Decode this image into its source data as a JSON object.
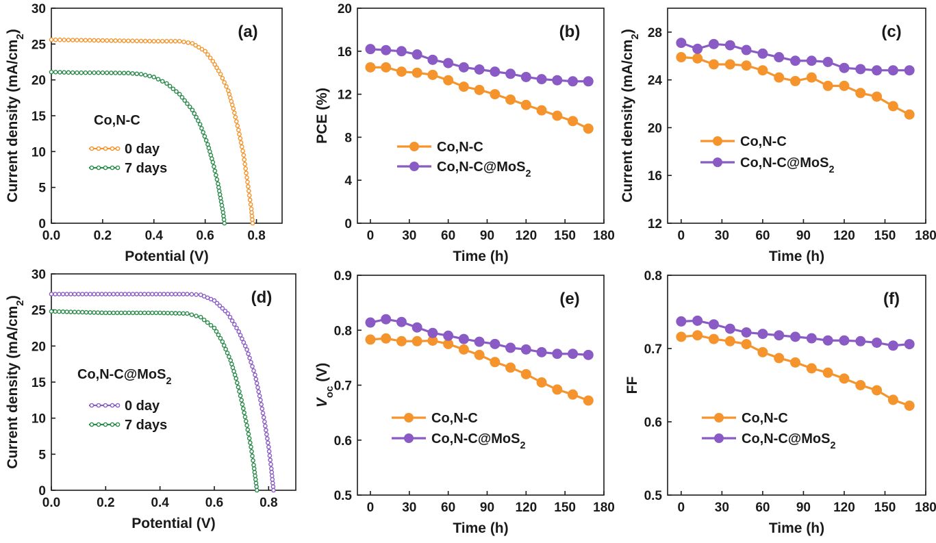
{
  "colors": {
    "orange": "#f5942c",
    "green": "#2a8a4a",
    "purple": "#8a5bc4",
    "axis": "#1a1a1a"
  },
  "chart_data": [
    {
      "id": "a",
      "type": "line",
      "panel_label": "(a)",
      "annotation": "Co,N-C",
      "xlabel": "Potential (V)",
      "ylabel": "Current density (mA/cm2)",
      "xlim": [
        0,
        0.9
      ],
      "ylim": [
        0,
        30
      ],
      "xticks": [
        "0.0",
        "0.2",
        "0.4",
        "0.6",
        "0.8"
      ],
      "yticks": [
        "0",
        "5",
        "10",
        "15",
        "20",
        "25",
        "30"
      ],
      "legend_position": "middle-left",
      "series": [
        {
          "name": "0 day",
          "color": "orange",
          "marker": "small-circle",
          "points": [
            [
              0,
              25.6
            ],
            [
              0.1,
              25.55
            ],
            [
              0.2,
              25.5
            ],
            [
              0.3,
              25.45
            ],
            [
              0.4,
              25.4
            ],
            [
              0.45,
              25.4
            ],
            [
              0.5,
              25.4
            ],
            [
              0.55,
              25.1
            ],
            [
              0.6,
              24.0
            ],
            [
              0.63,
              22.6
            ],
            [
              0.66,
              20.8
            ],
            [
              0.69,
              18.5
            ],
            [
              0.71,
              16.0
            ],
            [
              0.73,
              13.0
            ],
            [
              0.75,
              9.5
            ],
            [
              0.76,
              7.0
            ],
            [
              0.77,
              4.5
            ],
            [
              0.78,
              2.0
            ],
            [
              0.785,
              0
            ]
          ]
        },
        {
          "name": "7 days",
          "color": "green",
          "marker": "small-circle",
          "points": [
            [
              0,
              21.1
            ],
            [
              0.1,
              21.0
            ],
            [
              0.2,
              21.0
            ],
            [
              0.3,
              20.95
            ],
            [
              0.35,
              20.8
            ],
            [
              0.4,
              20.4
            ],
            [
              0.45,
              19.5
            ],
            [
              0.5,
              18.0
            ],
            [
              0.55,
              15.8
            ],
            [
              0.58,
              13.8
            ],
            [
              0.61,
              11.0
            ],
            [
              0.63,
              8.5
            ],
            [
              0.65,
              5.5
            ],
            [
              0.66,
              3.5
            ],
            [
              0.67,
              1.5
            ],
            [
              0.675,
              0
            ]
          ]
        }
      ]
    },
    {
      "id": "b",
      "type": "line",
      "panel_label": "(b)",
      "xlabel": "Time (h)",
      "ylabel": "PCE (%)",
      "xlim": [
        -10,
        180
      ],
      "ylim": [
        0,
        20
      ],
      "xticks": [
        "0",
        "30",
        "60",
        "90",
        "120",
        "150",
        "180"
      ],
      "yticks": [
        "0",
        "4",
        "8",
        "12",
        "16",
        "20"
      ],
      "legend_position": "middle-left",
      "x": [
        0,
        12,
        24,
        36,
        48,
        60,
        72,
        84,
        96,
        108,
        120,
        132,
        144,
        156,
        168
      ],
      "series": [
        {
          "name": "Co,N-C",
          "color": "orange",
          "values": [
            14.5,
            14.5,
            14.1,
            14.0,
            13.8,
            13.3,
            12.7,
            12.4,
            12.0,
            11.5,
            11.0,
            10.5,
            10.0,
            9.5,
            8.8
          ]
        },
        {
          "name": "Co,N-C@MoS2",
          "color": "purple",
          "values": [
            16.2,
            16.1,
            16.0,
            15.7,
            15.2,
            14.9,
            14.5,
            14.3,
            14.1,
            13.9,
            13.6,
            13.4,
            13.3,
            13.2,
            13.2
          ]
        }
      ]
    },
    {
      "id": "c",
      "type": "line",
      "panel_label": "(c)",
      "xlabel": "Time (h)",
      "ylabel": "Current density (mA/cm2)",
      "xlim": [
        -10,
        180
      ],
      "ylim": [
        12,
        30
      ],
      "xticks": [
        "0",
        "30",
        "60",
        "90",
        "120",
        "150",
        "180"
      ],
      "yticks": [
        "12",
        "16",
        "20",
        "24",
        "28"
      ],
      "legend_position": "middle-left",
      "x": [
        0,
        12,
        24,
        36,
        48,
        60,
        72,
        84,
        96,
        108,
        120,
        132,
        144,
        156,
        168
      ],
      "series": [
        {
          "name": "Co,N-C",
          "color": "orange",
          "values": [
            25.9,
            25.8,
            25.3,
            25.3,
            25.2,
            24.8,
            24.2,
            23.9,
            24.2,
            23.5,
            23.5,
            22.9,
            22.6,
            21.8,
            21.1
          ]
        },
        {
          "name": "Co,N-C@MoS2",
          "color": "purple",
          "values": [
            27.1,
            26.6,
            27.0,
            26.9,
            26.5,
            26.2,
            25.9,
            25.6,
            25.6,
            25.5,
            25.0,
            24.9,
            24.8,
            24.8,
            24.8
          ]
        }
      ]
    },
    {
      "id": "d",
      "type": "line",
      "panel_label": "(d)",
      "annotation": "Co,N-C@MoS2",
      "xlabel": "Potential (V)",
      "ylabel": "Current density (mA/cm2)",
      "xlim": [
        0,
        0.9
      ],
      "ylim": [
        0,
        30
      ],
      "xticks": [
        "0.0",
        "0.2",
        "0.4",
        "0.6",
        "0.8"
      ],
      "yticks": [
        "0",
        "5",
        "10",
        "15",
        "20",
        "25",
        "30"
      ],
      "legend_position": "middle-left",
      "series": [
        {
          "name": "0 day",
          "color": "purple",
          "marker": "small-circle",
          "points": [
            [
              0,
              27.2
            ],
            [
              0.1,
              27.2
            ],
            [
              0.2,
              27.2
            ],
            [
              0.3,
              27.2
            ],
            [
              0.4,
              27.2
            ],
            [
              0.5,
              27.2
            ],
            [
              0.55,
              27.1
            ],
            [
              0.6,
              26.3
            ],
            [
              0.65,
              24.5
            ],
            [
              0.69,
              22.0
            ],
            [
              0.72,
              19.5
            ],
            [
              0.75,
              16.0
            ],
            [
              0.77,
              12.5
            ],
            [
              0.785,
              9.5
            ],
            [
              0.8,
              6.0
            ],
            [
              0.81,
              3.0
            ],
            [
              0.815,
              1.0
            ],
            [
              0.818,
              0
            ]
          ]
        },
        {
          "name": "7 days",
          "color": "green",
          "marker": "small-circle",
          "points": [
            [
              0,
              24.8
            ],
            [
              0.1,
              24.7
            ],
            [
              0.2,
              24.6
            ],
            [
              0.3,
              24.6
            ],
            [
              0.4,
              24.6
            ],
            [
              0.5,
              24.5
            ],
            [
              0.55,
              24.0
            ],
            [
              0.6,
              22.5
            ],
            [
              0.63,
              20.6
            ],
            [
              0.66,
              18.0
            ],
            [
              0.68,
              15.5
            ],
            [
              0.7,
              12.5
            ],
            [
              0.72,
              9.0
            ],
            [
              0.735,
              6.0
            ],
            [
              0.745,
              3.5
            ],
            [
              0.752,
              1.5
            ],
            [
              0.757,
              0
            ]
          ]
        }
      ]
    },
    {
      "id": "e",
      "type": "line",
      "panel_label": "(e)",
      "xlabel": "Time (h)",
      "ylabel": "Voc (V)",
      "xlim": [
        -10,
        180
      ],
      "ylim": [
        0.5,
        0.9
      ],
      "xticks": [
        "0",
        "30",
        "60",
        "90",
        "120",
        "150",
        "180"
      ],
      "yticks": [
        "0.5",
        "0.6",
        "0.7",
        "0.8",
        "0.9"
      ],
      "legend_position": "lower-left",
      "x": [
        0,
        12,
        24,
        36,
        48,
        60,
        72,
        84,
        96,
        108,
        120,
        132,
        144,
        156,
        168
      ],
      "series": [
        {
          "name": "Co,N-C",
          "color": "orange",
          "values": [
            0.783,
            0.785,
            0.78,
            0.78,
            0.781,
            0.775,
            0.765,
            0.755,
            0.742,
            0.732,
            0.72,
            0.705,
            0.692,
            0.683,
            0.672
          ]
        },
        {
          "name": "Co,N-C@MoS2",
          "color": "purple",
          "values": [
            0.814,
            0.82,
            0.815,
            0.805,
            0.795,
            0.79,
            0.784,
            0.779,
            0.775,
            0.768,
            0.765,
            0.76,
            0.757,
            0.757,
            0.755
          ]
        }
      ]
    },
    {
      "id": "f",
      "type": "line",
      "panel_label": "(f)",
      "xlabel": "Time (h)",
      "ylabel": "FF",
      "xlim": [
        -10,
        180
      ],
      "ylim": [
        0.5,
        0.8
      ],
      "xticks": [
        "0",
        "30",
        "60",
        "90",
        "120",
        "150",
        "180"
      ],
      "yticks": [
        "0.5",
        "0.6",
        "0.7",
        "0.8"
      ],
      "legend_position": "lower-left",
      "x": [
        0,
        12,
        24,
        36,
        48,
        60,
        72,
        84,
        96,
        108,
        120,
        132,
        144,
        156,
        168
      ],
      "series": [
        {
          "name": "Co,N-C",
          "color": "orange",
          "values": [
            0.716,
            0.718,
            0.713,
            0.71,
            0.706,
            0.695,
            0.687,
            0.681,
            0.673,
            0.667,
            0.659,
            0.65,
            0.643,
            0.63,
            0.622
          ]
        },
        {
          "name": "Co,N-C@MoS2",
          "color": "purple",
          "values": [
            0.737,
            0.738,
            0.733,
            0.727,
            0.722,
            0.72,
            0.718,
            0.716,
            0.714,
            0.711,
            0.711,
            0.71,
            0.708,
            0.704,
            0.706
          ]
        }
      ]
    }
  ]
}
